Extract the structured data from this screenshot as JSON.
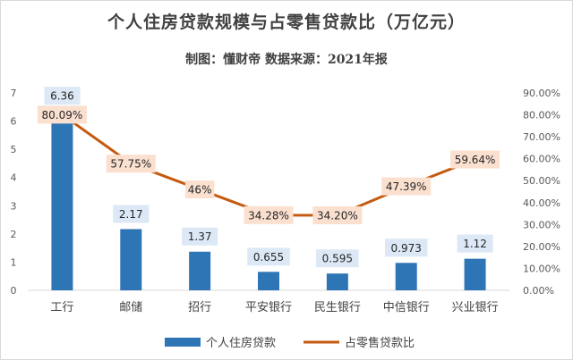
{
  "chart_data": {
    "type": "bar+line",
    "title": "个人住房贷款规模与占零售贷款比（万亿元）",
    "subtitle": "制图：懂财帝  数据来源：2021年报",
    "categories": [
      "工行",
      "邮储",
      "招行",
      "平安银行",
      "民生银行",
      "中信银行",
      "兴业银行"
    ],
    "series": [
      {
        "name": "个人住房贷款",
        "type": "bar",
        "axis": "left",
        "color": "#2e75b6",
        "values": [
          6.36,
          2.17,
          1.37,
          0.655,
          0.595,
          0.973,
          1.12
        ],
        "labels": [
          "6.36",
          "2.17",
          "1.37",
          "0.655",
          "0.595",
          "0.973",
          "1.12"
        ]
      },
      {
        "name": "占零售贷款比",
        "type": "line",
        "axis": "right",
        "color": "#c55a11",
        "values": [
          80.09,
          57.75,
          46,
          34.28,
          34.2,
          47.39,
          59.64
        ],
        "labels": [
          "80.09%",
          "57.75%",
          "46%",
          "34.28%",
          "34.20%",
          "47.39%",
          "59.64%"
        ]
      }
    ],
    "y_left": {
      "ylim": [
        0,
        7
      ],
      "ticks": [
        "0",
        "1",
        "2",
        "3",
        "4",
        "5",
        "6",
        "7"
      ]
    },
    "y_right": {
      "ylim": [
        0,
        90
      ],
      "ticks": [
        "0.00%",
        "10.00%",
        "20.00%",
        "30.00%",
        "40.00%",
        "50.00%",
        "60.00%",
        "70.00%",
        "80.00%",
        "90.00%"
      ]
    },
    "grid": false,
    "legend": "bottom"
  }
}
